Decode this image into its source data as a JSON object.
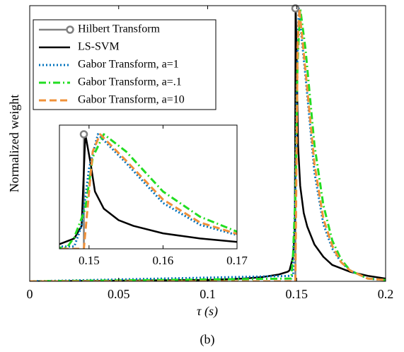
{
  "chart_data": {
    "type": "line",
    "x_label": "τ (s)",
    "y_label": "Normalized weight",
    "caption": "(b)",
    "xlim": [
      0,
      0.2
    ],
    "ylim": [
      0,
      1.01
    ],
    "xticks": [
      0,
      0.05,
      0.1,
      0.15,
      0.2
    ],
    "legend": "upper left",
    "series": [
      {
        "name": "Hilbert Transform",
        "color": "#808080",
        "style": "stem",
        "marker": "circle",
        "x": [
          0.1493
        ],
        "values": [
          1
        ]
      },
      {
        "name": "LS-SVM",
        "color": "#000000",
        "style": "solid",
        "x": [
          0,
          0.1,
          0.12,
          0.13,
          0.14,
          0.145,
          0.146,
          0.148,
          0.149,
          0.1495,
          0.1502,
          0.1508,
          0.152,
          0.154,
          0.156,
          0.16,
          0.165,
          0.17,
          0.18,
          0.19,
          0.2
        ],
        "values": [
          0,
          0.005,
          0.01,
          0.015,
          0.025,
          0.035,
          0.04,
          0.09,
          0.2,
          1,
          0.75,
          0.5,
          0.35,
          0.25,
          0.2,
          0.135,
          0.09,
          0.06,
          0.035,
          0.02,
          0.01
        ]
      },
      {
        "name": "Gabor Transform, a=1",
        "color": "#0072bd",
        "style": "dotted",
        "x": [
          0,
          0.148,
          0.149,
          0.15,
          0.1512,
          0.155,
          0.16,
          0.165,
          0.17,
          0.175,
          0.18,
          0.19,
          0.2
        ],
        "values": [
          0,
          0.02,
          0.2,
          0.7,
          1,
          0.75,
          0.4,
          0.21,
          0.12,
          0.07,
          0.04,
          0.01,
          0.005
        ]
      },
      {
        "name": "Gabor Transform, a=.1",
        "color": "#22dd22",
        "style": "dashdot",
        "x": [
          0,
          0.147,
          0.148,
          0.1495,
          0.1505,
          0.152,
          0.155,
          0.16,
          0.165,
          0.17,
          0.175,
          0.18,
          0.19,
          0.2
        ],
        "values": [
          0,
          0.01,
          0.1,
          0.35,
          0.8,
          1,
          0.85,
          0.5,
          0.28,
          0.15,
          0.08,
          0.04,
          0.01,
          0.005
        ]
      },
      {
        "name": "Gabor Transform, a=10",
        "color": "#f0913a",
        "style": "dashed",
        "x": [
          0,
          0.1493,
          0.1505,
          0.1515,
          0.155,
          0.16,
          0.165,
          0.17,
          0.175,
          0.18,
          0.19,
          0.2
        ],
        "values": [
          0,
          0,
          0.85,
          1,
          0.77,
          0.43,
          0.23,
          0.13,
          0.07,
          0.04,
          0.01,
          0.005
        ]
      }
    ],
    "inset": {
      "xlim": [
        0.146,
        0.17
      ],
      "ylim": [
        0,
        1.08
      ],
      "xticks": [
        0.15,
        0.16,
        0.17
      ]
    }
  }
}
